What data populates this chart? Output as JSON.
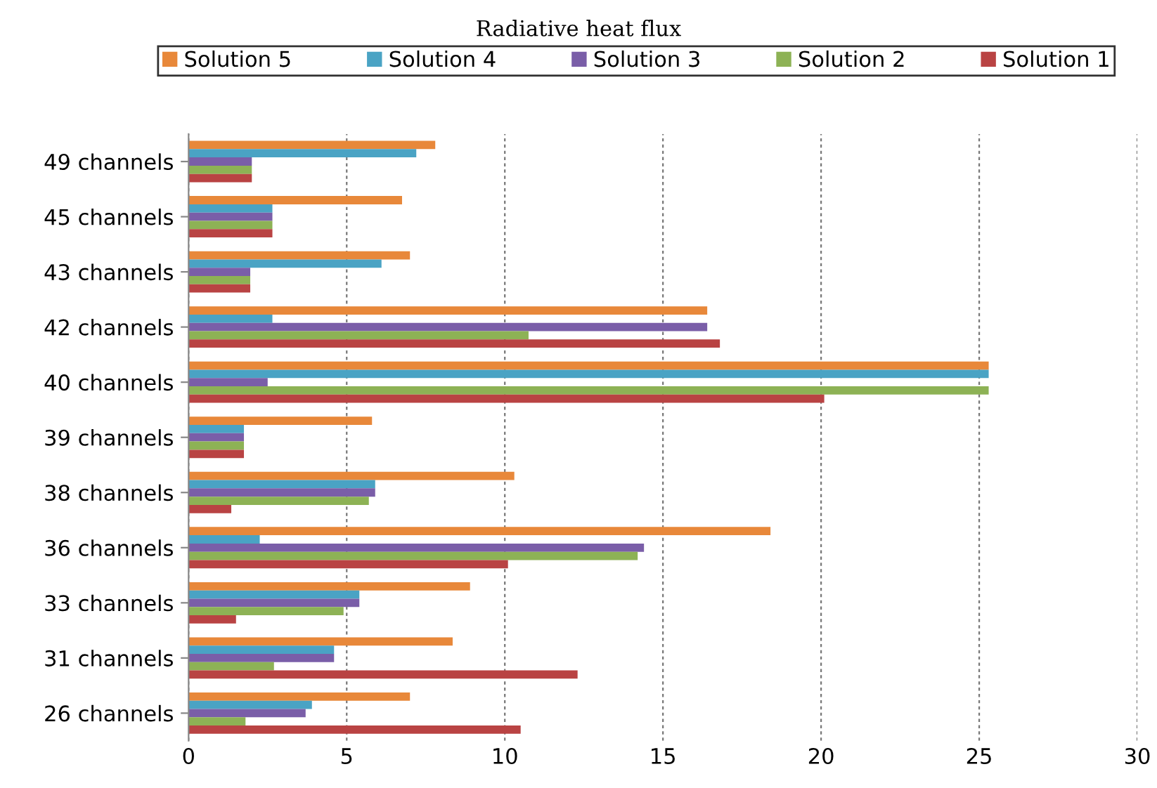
{
  "chart_data": {
    "type": "bar",
    "orientation": "horizontal",
    "title": "Radiative heat flux",
    "categories": [
      "49 channels",
      "45 channels",
      "43 channels",
      "42 channels",
      "40 channels",
      "39 channels",
      "38 channels",
      "36 channels",
      "33 channels",
      "31 channels",
      "26 channels"
    ],
    "series": [
      {
        "name": "Solution 5",
        "color": "#e8883a",
        "values": [
          7.8,
          6.75,
          7.0,
          16.4,
          25.3,
          5.8,
          10.3,
          18.4,
          8.9,
          8.35,
          7.0
        ]
      },
      {
        "name": "Solution 4",
        "color": "#4aa3c4",
        "values": [
          7.2,
          2.65,
          6.1,
          2.65,
          25.3,
          1.75,
          5.9,
          2.25,
          5.4,
          4.6,
          3.9
        ]
      },
      {
        "name": "Solution 3",
        "color": "#7a5ea8",
        "values": [
          2.0,
          2.65,
          1.95,
          16.4,
          2.5,
          1.75,
          5.9,
          14.4,
          5.4,
          4.6,
          3.7
        ]
      },
      {
        "name": "Solution 2",
        "color": "#8db255",
        "values": [
          2.0,
          2.65,
          1.95,
          10.75,
          25.3,
          1.75,
          5.7,
          14.2,
          4.9,
          2.7,
          1.8
        ]
      },
      {
        "name": "Solution 1",
        "color": "#b94343",
        "values": [
          2.0,
          2.65,
          1.95,
          16.8,
          20.1,
          1.75,
          1.35,
          10.1,
          1.5,
          12.3,
          10.5
        ]
      }
    ],
    "xlim": [
      0,
      30
    ],
    "xticks": [
      0,
      5,
      10,
      15,
      20,
      25,
      30
    ],
    "grid": "x",
    "legend": "top"
  }
}
